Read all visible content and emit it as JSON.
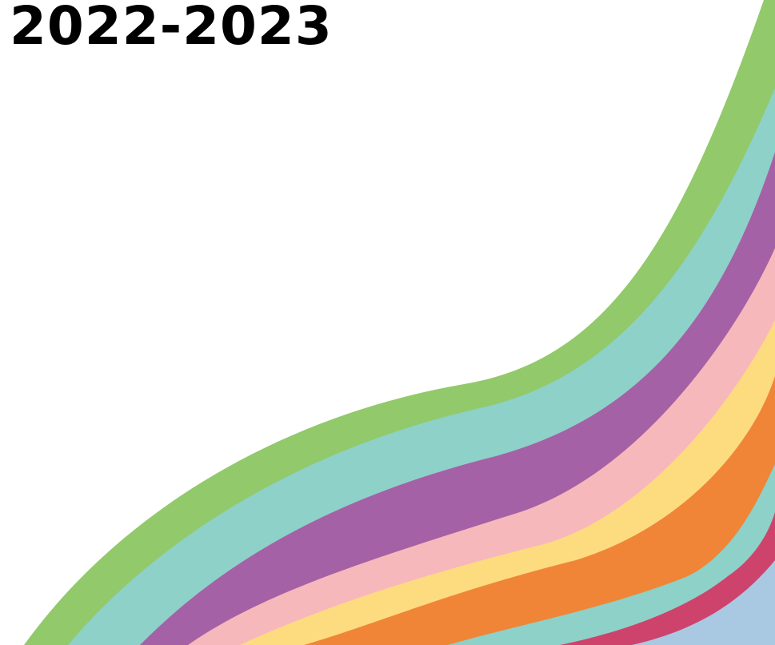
{
  "title": "2022-2023"
}
